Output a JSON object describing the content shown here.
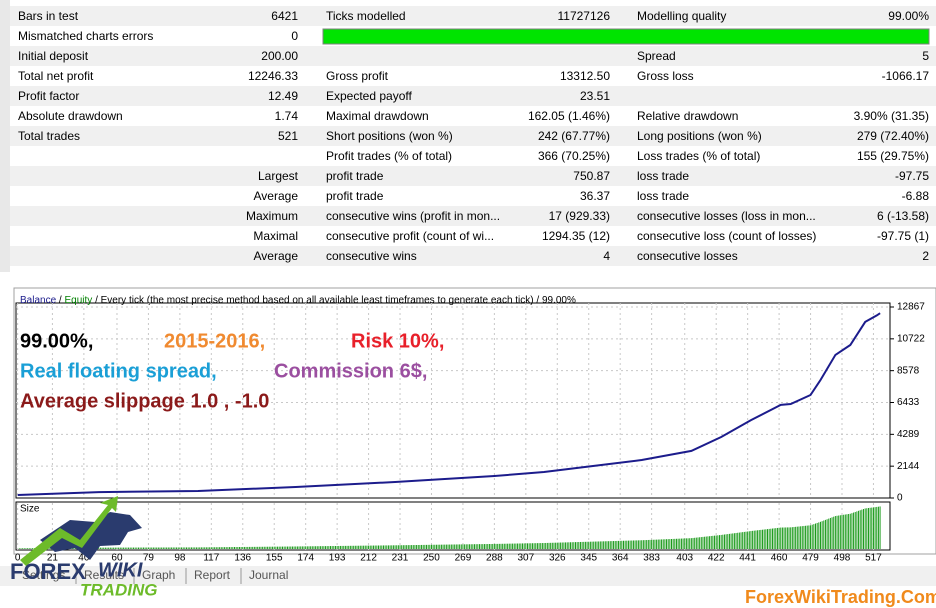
{
  "report": {
    "rows": [
      [
        "Bars in test",
        "6421",
        "Ticks modelled",
        "11727126",
        "Modelling quality",
        "99.00%"
      ],
      [
        "Mismatched charts errors",
        "0",
        null,
        null,
        null,
        null
      ],
      [
        "Initial deposit",
        "200.00",
        null,
        null,
        "Spread",
        "5"
      ],
      [
        "Total net profit",
        "12246.33",
        "Gross profit",
        "13312.50",
        "Gross loss",
        "-1066.17"
      ],
      [
        "Profit factor",
        "12.49",
        "Expected payoff",
        "23.51",
        null,
        null
      ],
      [
        "Absolute drawdown",
        "1.74",
        "Maximal drawdown",
        "162.05 (1.46%)",
        "Relative drawdown",
        "3.90% (31.35)"
      ],
      [
        "Total trades",
        "521",
        "Short positions (won %)",
        "242 (67.77%)",
        "Long positions (won %)",
        "279 (72.40%)"
      ],
      [
        null,
        null,
        "Profit trades (% of total)",
        "366 (70.25%)",
        "Loss trades (% of total)",
        "155 (29.75%)"
      ],
      [
        null,
        "Largest",
        "profit trade",
        "750.87",
        "loss trade",
        "-97.75"
      ],
      [
        null,
        "Average",
        "profit trade",
        "36.37",
        "loss trade",
        "-6.88"
      ],
      [
        null,
        "Maximum",
        "consecutive wins (profit in mon...",
        "17 (929.33)",
        "consecutive losses (loss in mon...",
        "6 (-13.58)"
      ],
      [
        null,
        "Maximal",
        "consecutive profit (count of wi...",
        "1294.35 (12)",
        "consecutive loss (count of losses)",
        "-97.75 (1)"
      ],
      [
        null,
        "Average",
        "consecutive wins",
        "4",
        "consecutive losses",
        "2"
      ]
    ]
  },
  "chart": {
    "type": "line",
    "equity_label": "Equity",
    "equity_color": "#008000",
    "separator": "/",
    "header": "Every tick (the most precise method based on all available least timeframes to generate each tick)",
    "quality": "99.00%",
    "annotations": [
      {
        "text": "99.00%,",
        "color": "#000000"
      },
      {
        "text": "2015-2016,",
        "color": "#f08a30"
      },
      {
        "text": "Risk 10%,",
        "color": "#e8202a"
      },
      {
        "text": "Real floating spread,",
        "color": "#1a9fd6"
      },
      {
        "text": "Commission 6$,",
        "color": "#9b4fa0"
      },
      {
        "text": "Average slippage 1.0 , -1.0",
        "color": "#8b1a1a"
      }
    ],
    "series": [
      {
        "name": "Balance",
        "color": "#1c1c8c",
        "x": [
          0,
          49,
          109,
          168,
          228,
          288,
          318,
          347,
          377,
          407,
          425,
          443,
          461,
          467,
          479,
          485,
          494,
          503,
          512,
          519,
          521
        ],
        "values": [
          200,
          400,
          470,
          740,
          1080,
          1480,
          1750,
          2150,
          2560,
          3170,
          4110,
          5250,
          6270,
          6330,
          6940,
          7950,
          9640,
          10310,
          11860,
          12300,
          12446
        ]
      }
    ],
    "xlim": [
      -1,
      527
    ],
    "ylim": [
      0,
      12867
    ],
    "xticks": [
      0,
      21,
      40,
      60,
      79,
      98,
      117,
      136,
      155,
      174,
      193,
      212,
      231,
      250,
      269,
      288,
      307,
      326,
      345,
      364,
      383,
      403,
      422,
      441,
      460,
      479,
      498,
      517
    ],
    "yticks": [
      0,
      2144,
      4289,
      6433,
      8578,
      10722,
      12867
    ],
    "grid": true,
    "size_label": "Size",
    "size_color": "#1a9a1a"
  },
  "tabs": [
    "Settings",
    "Results",
    "Graph",
    "Report",
    "Journal"
  ],
  "logo": {
    "line1": "FOREX",
    "line2": "WIKI",
    "line3": "TRADING"
  },
  "watermark": "ForexWikiTrading.Com"
}
